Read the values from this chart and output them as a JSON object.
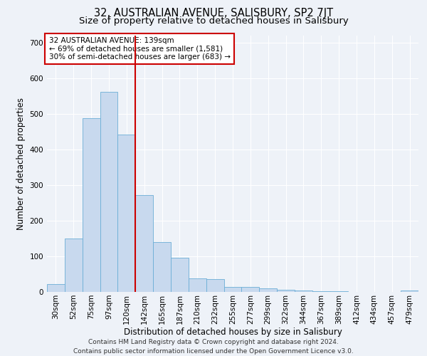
{
  "title": "32, AUSTRALIAN AVENUE, SALISBURY, SP2 7JT",
  "subtitle": "Size of property relative to detached houses in Salisbury",
  "xlabel": "Distribution of detached houses by size in Salisbury",
  "ylabel": "Number of detached properties",
  "footer_line1": "Contains HM Land Registry data © Crown copyright and database right 2024.",
  "footer_line2": "Contains public sector information licensed under the Open Government Licence v3.0.",
  "annotation_line1": "32 AUSTRALIAN AVENUE: 139sqm",
  "annotation_line2": "← 69% of detached houses are smaller (1,581)",
  "annotation_line3": "30% of semi-detached houses are larger (683) →",
  "bar_color": "#c8d9ee",
  "bar_edge_color": "#6baed6",
  "vline_color": "#cc0000",
  "vline_x": 4.5,
  "categories": [
    "30sqm",
    "52sqm",
    "75sqm",
    "97sqm",
    "120sqm",
    "142sqm",
    "165sqm",
    "187sqm",
    "210sqm",
    "232sqm",
    "255sqm",
    "277sqm",
    "299sqm",
    "322sqm",
    "344sqm",
    "367sqm",
    "389sqm",
    "412sqm",
    "434sqm",
    "457sqm",
    "479sqm"
  ],
  "values": [
    22,
    150,
    488,
    562,
    442,
    272,
    140,
    97,
    38,
    36,
    14,
    15,
    10,
    6,
    5,
    2,
    2,
    1,
    0,
    0,
    5
  ],
  "ylim": [
    0,
    720
  ],
  "yticks": [
    0,
    100,
    200,
    300,
    400,
    500,
    600,
    700
  ],
  "background_color": "#eef2f8",
  "plot_bg_color": "#eef2f8",
  "grid_color": "#ffffff",
  "title_fontsize": 10.5,
  "subtitle_fontsize": 9.5,
  "axis_label_fontsize": 8.5,
  "tick_fontsize": 7.5,
  "annotation_fontsize": 7.5,
  "footer_fontsize": 6.5,
  "annotation_box_edgecolor": "#cc0000",
  "annotation_box_facecolor": "#ffffff"
}
